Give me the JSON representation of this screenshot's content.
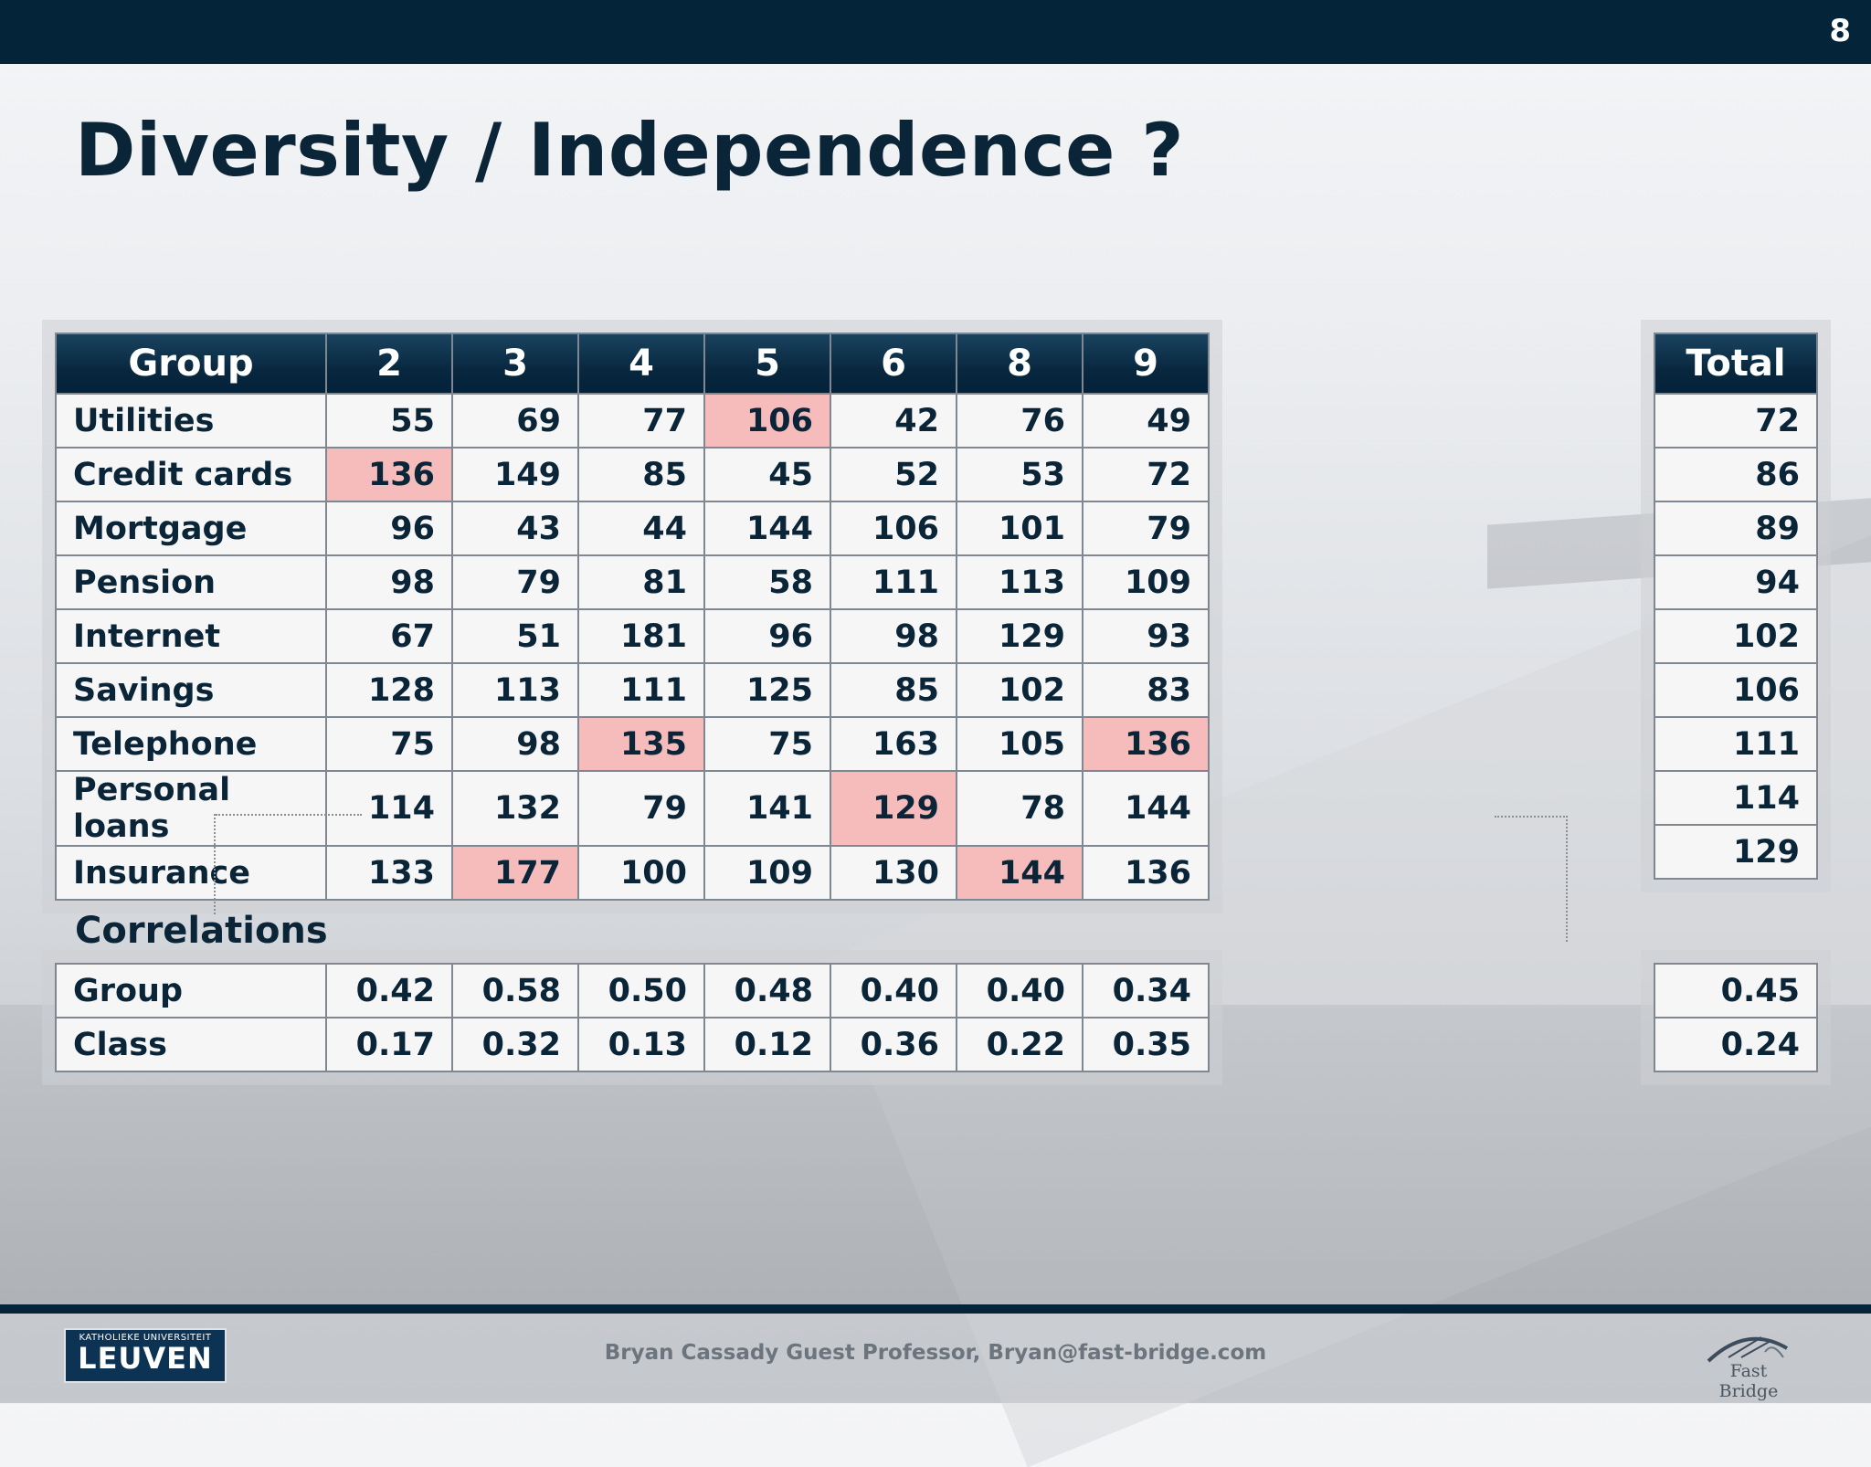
{
  "page_number": "8",
  "title": "Diversity / Independence ?",
  "main_table": {
    "headers": [
      "Group",
      "2",
      "3",
      "4",
      "5",
      "6",
      "8",
      "9"
    ],
    "rows": [
      {
        "label": "Utilities",
        "values": [
          "55",
          "69",
          "77",
          "106",
          "42",
          "76",
          "49"
        ],
        "highlight": [
          false,
          false,
          false,
          true,
          false,
          false,
          false
        ]
      },
      {
        "label": "Credit cards",
        "values": [
          "136",
          "149",
          "85",
          "45",
          "52",
          "53",
          "72"
        ],
        "highlight": [
          true,
          false,
          false,
          false,
          false,
          false,
          false
        ]
      },
      {
        "label": "Mortgage",
        "values": [
          "96",
          "43",
          "44",
          "144",
          "106",
          "101",
          "79"
        ],
        "highlight": [
          false,
          false,
          false,
          false,
          false,
          false,
          false
        ]
      },
      {
        "label": "Pension",
        "values": [
          "98",
          "79",
          "81",
          "58",
          "111",
          "113",
          "109"
        ],
        "highlight": [
          false,
          false,
          false,
          false,
          false,
          false,
          false
        ]
      },
      {
        "label": "Internet",
        "values": [
          "67",
          "51",
          "181",
          "96",
          "98",
          "129",
          "93"
        ],
        "highlight": [
          false,
          false,
          false,
          false,
          false,
          false,
          false
        ]
      },
      {
        "label": "Savings",
        "values": [
          "128",
          "113",
          "111",
          "125",
          "85",
          "102",
          "83"
        ],
        "highlight": [
          false,
          false,
          false,
          false,
          false,
          false,
          false
        ]
      },
      {
        "label": "Telephone",
        "values": [
          "75",
          "98",
          "135",
          "75",
          "163",
          "105",
          "136"
        ],
        "highlight": [
          false,
          false,
          true,
          false,
          false,
          false,
          true
        ]
      },
      {
        "label": "Personal loans",
        "values": [
          "114",
          "132",
          "79",
          "141",
          "129",
          "78",
          "144"
        ],
        "highlight": [
          false,
          false,
          false,
          false,
          true,
          false,
          false
        ]
      },
      {
        "label": "Insurance",
        "values": [
          "133",
          "177",
          "100",
          "109",
          "130",
          "144",
          "136"
        ],
        "highlight": [
          false,
          true,
          false,
          false,
          false,
          true,
          false
        ]
      }
    ]
  },
  "total_table": {
    "header": "Total",
    "values": [
      "72",
      "86",
      "89",
      "94",
      "102",
      "106",
      "111",
      "114",
      "129"
    ]
  },
  "correlations": {
    "title": "Correlations",
    "rows": [
      {
        "label": "Group",
        "values": [
          "0.42",
          "0.58",
          "0.50",
          "0.48",
          "0.40",
          "0.40",
          "0.34"
        ],
        "total": "0.45"
      },
      {
        "label": "Class",
        "values": [
          "0.17",
          "0.32",
          "0.13",
          "0.12",
          "0.36",
          "0.22",
          "0.35"
        ],
        "total": "0.24"
      }
    ]
  },
  "footer": {
    "text": "Bryan Cassady Guest Professor, Bryan@fast-bridge.com",
    "logo_small": "KATHOLIEKE UNIVERSITEIT",
    "logo_big": "LEUVEN",
    "brand": "Fast Bridge"
  }
}
